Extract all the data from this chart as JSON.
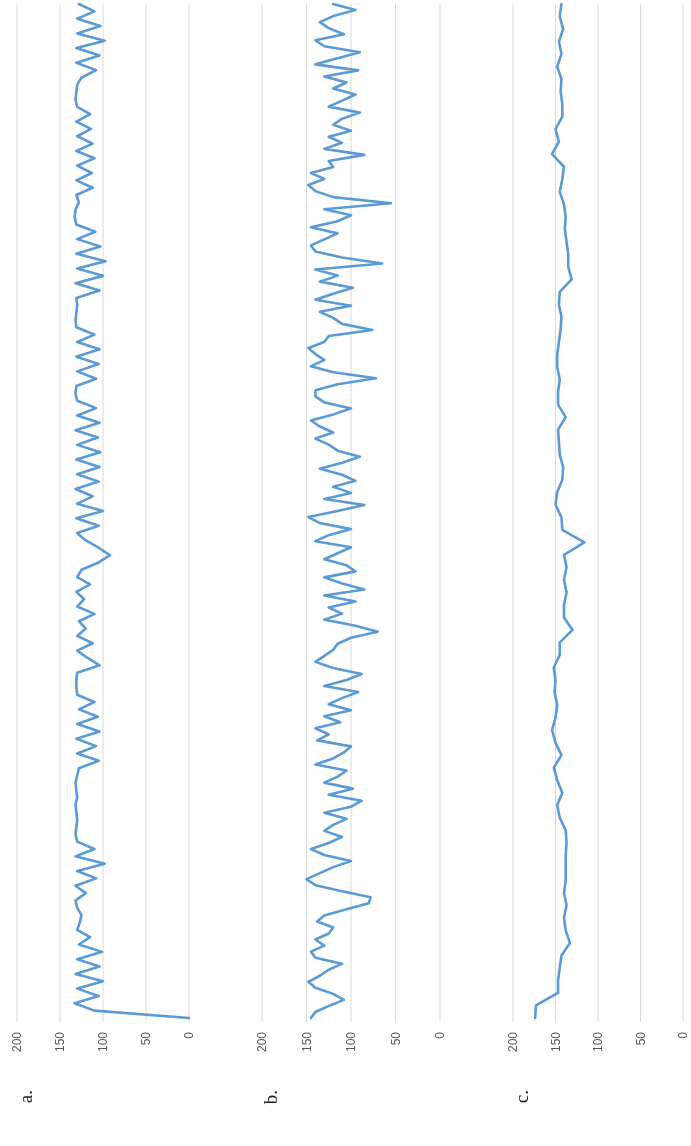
{
  "chart_data": [
    {
      "type": "line",
      "orientation": "horizontal",
      "title": "a.",
      "xlim": [
        200,
        0
      ],
      "xticks": [
        200,
        150,
        100,
        50,
        0
      ],
      "grid": "x",
      "tick_labels": "x",
      "categories": [
        null,
        null,
        null,
        null,
        null,
        null,
        null,
        null,
        null,
        null,
        null,
        null,
        null,
        null,
        null,
        null,
        null,
        null,
        null,
        null,
        null,
        null,
        null,
        null,
        null,
        null,
        null,
        null,
        null,
        null,
        null,
        null,
        null,
        null,
        null,
        null,
        null,
        null,
        null,
        null,
        null,
        null,
        null,
        null,
        null,
        null,
        null,
        null,
        null,
        null,
        null,
        null,
        null,
        null,
        null,
        null,
        null,
        null,
        null,
        null,
        null,
        null,
        null,
        null,
        null,
        null,
        null,
        null,
        null,
        null,
        null,
        null,
        null,
        null,
        null,
        null,
        null,
        null,
        null,
        null,
        null,
        null,
        null,
        null,
        null,
        null,
        null,
        null,
        null,
        null,
        null,
        null,
        null,
        null,
        null,
        null,
        null,
        null,
        null,
        null,
        null,
        null,
        null,
        null,
        null,
        null,
        null,
        null,
        null,
        null,
        null,
        null,
        null,
        null,
        null,
        null,
        null,
        null,
        null,
        null,
        null,
        null,
        null,
        null,
        null,
        null,
        null,
        null,
        null,
        null,
        null,
        null,
        null,
        null,
        null,
        null,
        null,
        null,
        null
      ],
      "series": [
        {
          "color": "#5b9bd5",
          "values": [
            128,
            110,
            130,
            103,
            130,
            98,
            131,
            104,
            131,
            108,
            125,
            130,
            131,
            132,
            130,
            115,
            131,
            114,
            130,
            112,
            131,
            110,
            130,
            113,
            131,
            112,
            131,
            128,
            132,
            133,
            131,
            109,
            130,
            103,
            131,
            97,
            130,
            100,
            132,
            104,
            131,
            130,
            131,
            132,
            131,
            110,
            130,
            104,
            131,
            105,
            130,
            108,
            131,
            132,
            130,
            108,
            130,
            104,
            132,
            106,
            130,
            103,
            131,
            104,
            130,
            105,
            132,
            112,
            130,
            100,
            131,
            105,
            130,
            120,
            105,
            92,
            105,
            125,
            130,
            115,
            131,
            122,
            130,
            110,
            128,
            120,
            130,
            112,
            130,
            118,
            104,
            130,
            131,
            131,
            130,
            110,
            128,
            106,
            130,
            104,
            131,
            108,
            130,
            105,
            128,
            130,
            132,
            131,
            130,
            132,
            131,
            130,
            131,
            132,
            130,
            110,
            132,
            98,
            130,
            108,
            132,
            120,
            132,
            130,
            125,
            127,
            130,
            115,
            128,
            101,
            130,
            104,
            132,
            100,
            130,
            105,
            133,
            110,
            0
          ]
        }
      ]
    },
    {
      "type": "line",
      "orientation": "horizontal",
      "title": "b.",
      "xlim": [
        200,
        0
      ],
      "xticks": [
        200,
        150,
        100,
        50,
        0
      ],
      "grid": "x",
      "tick_labels": "x",
      "categories": [
        null,
        null,
        null,
        null,
        null,
        null,
        null,
        null,
        null,
        null,
        null,
        null,
        null,
        null,
        null,
        null,
        null,
        null,
        null,
        null,
        null,
        null,
        null,
        null,
        null,
        null,
        null,
        null,
        null,
        null,
        null,
        null,
        null,
        null,
        null,
        null,
        null,
        null,
        null,
        null,
        null,
        null,
        null,
        null,
        null,
        null,
        null,
        null,
        null,
        null,
        null,
        null,
        null,
        null,
        null,
        null,
        null,
        null,
        null,
        null,
        null,
        null,
        null,
        null,
        null,
        null,
        null,
        null,
        null,
        null,
        null,
        null,
        null,
        null,
        null,
        null,
        null,
        null,
        null,
        null,
        null,
        null,
        null,
        null,
        null,
        null,
        null,
        null,
        null,
        null,
        null,
        null,
        null,
        null,
        null,
        null,
        null,
        null,
        null,
        null,
        null,
        null,
        null,
        null,
        null,
        null,
        null,
        null,
        null,
        null,
        null,
        null,
        null,
        null,
        null,
        null,
        null,
        null,
        null,
        null,
        null,
        null,
        null,
        null,
        null,
        null,
        null,
        null,
        null,
        null,
        null,
        null,
        null,
        null,
        null,
        null,
        null,
        null,
        null,
        null,
        null,
        null,
        null,
        null,
        null,
        null,
        null,
        null,
        null,
        null,
        null,
        null,
        null,
        null,
        null,
        null,
        null,
        null,
        null,
        null,
        null,
        null,
        null,
        null,
        null,
        null,
        null,
        null,
        null
      ],
      "series": [
        {
          "color": "#5b9bd5",
          "values": [
            120,
            95,
            120,
            135,
            125,
            108,
            140,
            130,
            90,
            115,
            140,
            92,
            130,
            105,
            120,
            95,
            110,
            125,
            90,
            110,
            120,
            100,
            125,
            110,
            130,
            85,
            125,
            120,
            145,
            130,
            148,
            140,
            120,
            55,
            130,
            100,
            115,
            145,
            115,
            130,
            145,
            140,
            110,
            65,
            140,
            115,
            135,
            98,
            120,
            140,
            100,
            135,
            120,
            110,
            76,
            125,
            130,
            148,
            140,
            130,
            145,
            120,
            72,
            115,
            140,
            140,
            130,
            100,
            120,
            145,
            135,
            120,
            140,
            125,
            115,
            90,
            110,
            135,
            110,
            95,
            120,
            100,
            130,
            85,
            115,
            148,
            135,
            100,
            125,
            140,
            100,
            115,
            130,
            105,
            95,
            130,
            110,
            85,
            130,
            95,
            125,
            110,
            130,
            95,
            70,
            100,
            115,
            120,
            130,
            140,
            120,
            88,
            105,
            130,
            92,
            110,
            125,
            100,
            130,
            112,
            140,
            125,
            138,
            100,
            108,
            120,
            140,
            105,
            115,
            130,
            98,
            125,
            88,
            100,
            130,
            105,
            120,
            130,
            110,
            125,
            145,
            130,
            100,
            120,
            135,
            150,
            140,
            110,
            78,
            80,
            105,
            130,
            138,
            120,
            125,
            140,
            130,
            145,
            140,
            110,
            125,
            135,
            148,
            140,
            120,
            108,
            125,
            140,
            145
          ]
        }
      ]
    },
    {
      "type": "line",
      "orientation": "horizontal",
      "title": "c.",
      "xlim": [
        200,
        0
      ],
      "xticks": [
        200,
        150,
        100,
        50,
        0
      ],
      "grid": "x",
      "tick_labels": "x",
      "categories": [
        null,
        null,
        null,
        null,
        null,
        null,
        null,
        null,
        null,
        null,
        null,
        null,
        null,
        null,
        null,
        null,
        null,
        null,
        null,
        null,
        null,
        null,
        null,
        null,
        null,
        null,
        null,
        null,
        null,
        null,
        null,
        null,
        null,
        null,
        null,
        null,
        null,
        null,
        null,
        null,
        null,
        null,
        null,
        null,
        null,
        null,
        null,
        null,
        null,
        null,
        null,
        null,
        null,
        null,
        null,
        null,
        null,
        null,
        null,
        null,
        null,
        null,
        null,
        null,
        null,
        null,
        null,
        null,
        null,
        null,
        null,
        null,
        null,
        null,
        null,
        null,
        null,
        null,
        null,
        null,
        null,
        null
      ],
      "series": [
        {
          "color": "#5b9bd5",
          "values": [
            143,
            145,
            141,
            146,
            143,
            148,
            143,
            144,
            142,
            142,
            150,
            146,
            154,
            140,
            142,
            145,
            140,
            138,
            139,
            137,
            135,
            135,
            131,
            145,
            146,
            143,
            144,
            146,
            148,
            148,
            145,
            147,
            147,
            138,
            147,
            146,
            145,
            141,
            142,
            148,
            150,
            143,
            142,
            116,
            140,
            137,
            140,
            137,
            140,
            140,
            130,
            145,
            145,
            152,
            150,
            151,
            148,
            150,
            154,
            150,
            143,
            152,
            148,
            142,
            148,
            145,
            138,
            137,
            138,
            138,
            138,
            140,
            137,
            140,
            138,
            133,
            143,
            145,
            147,
            147,
            173,
            174
          ]
        }
      ]
    }
  ]
}
